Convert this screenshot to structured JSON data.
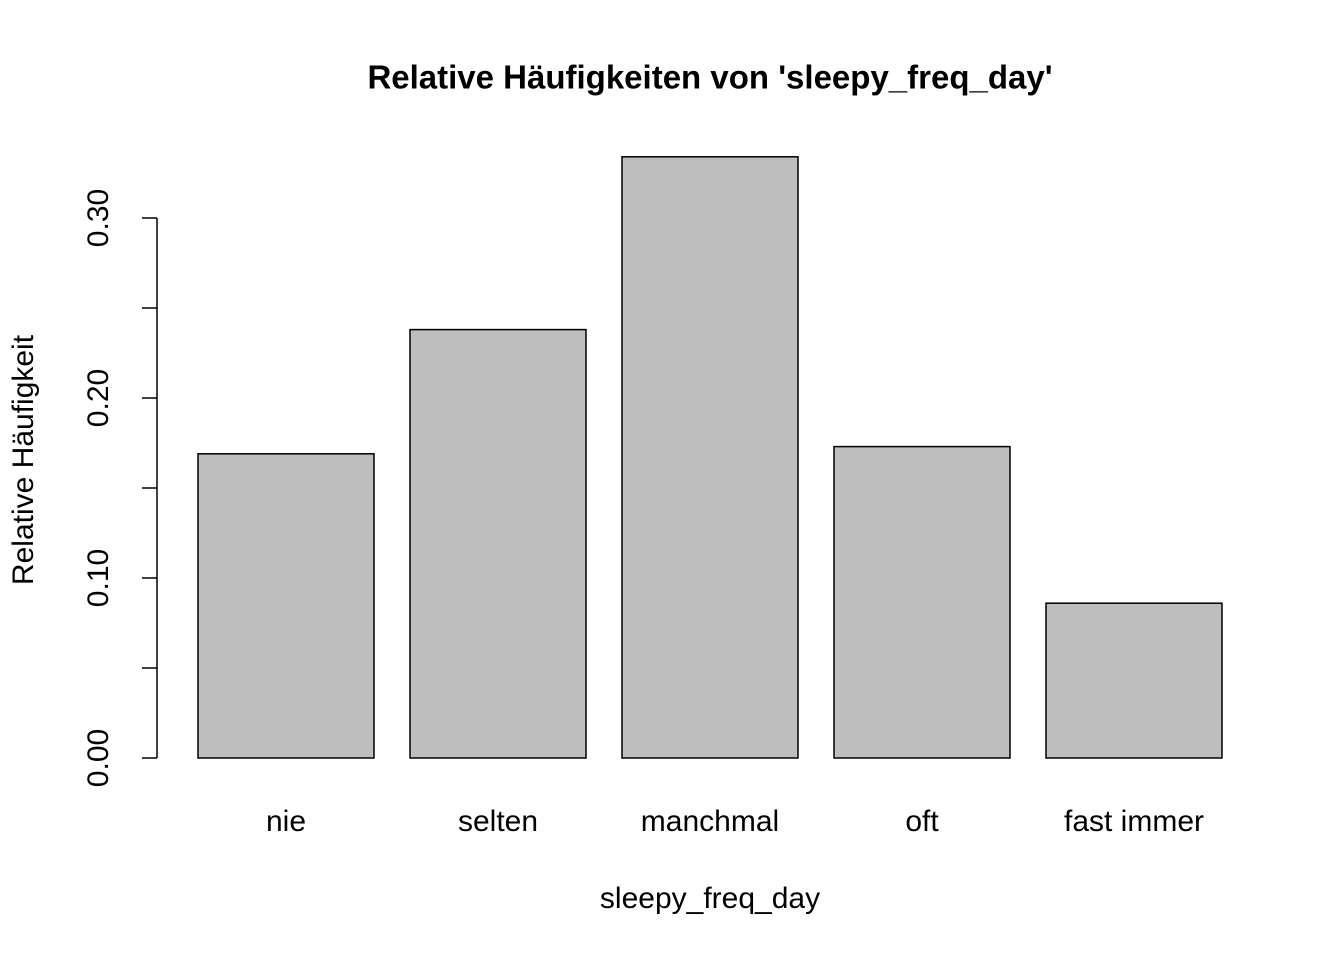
{
  "chart_data": {
    "type": "bar",
    "title": "Relative Häufigkeiten von 'sleepy_freq_day'",
    "x_label": "sleepy_freq_day",
    "y_label": "Relative Häufigkeit",
    "categories": [
      "nie",
      "selten",
      "manchmal",
      "oft",
      "fast immer"
    ],
    "values": [
      0.169,
      0.238,
      0.334,
      0.173,
      0.086
    ],
    "color": "#bebebe",
    "ylim": [
      0,
      0.3
    ],
    "yticks": [
      {
        "value": 0,
        "label": "0.00"
      },
      {
        "value": 0.1,
        "label": "0.10"
      },
      {
        "value": 0.2,
        "label": "0.20"
      },
      {
        "value": 0.3,
        "label": "0.30"
      }
    ],
    "yminor_ticks": [
      0.05,
      0.15,
      0.25
    ],
    "grid": false
  }
}
